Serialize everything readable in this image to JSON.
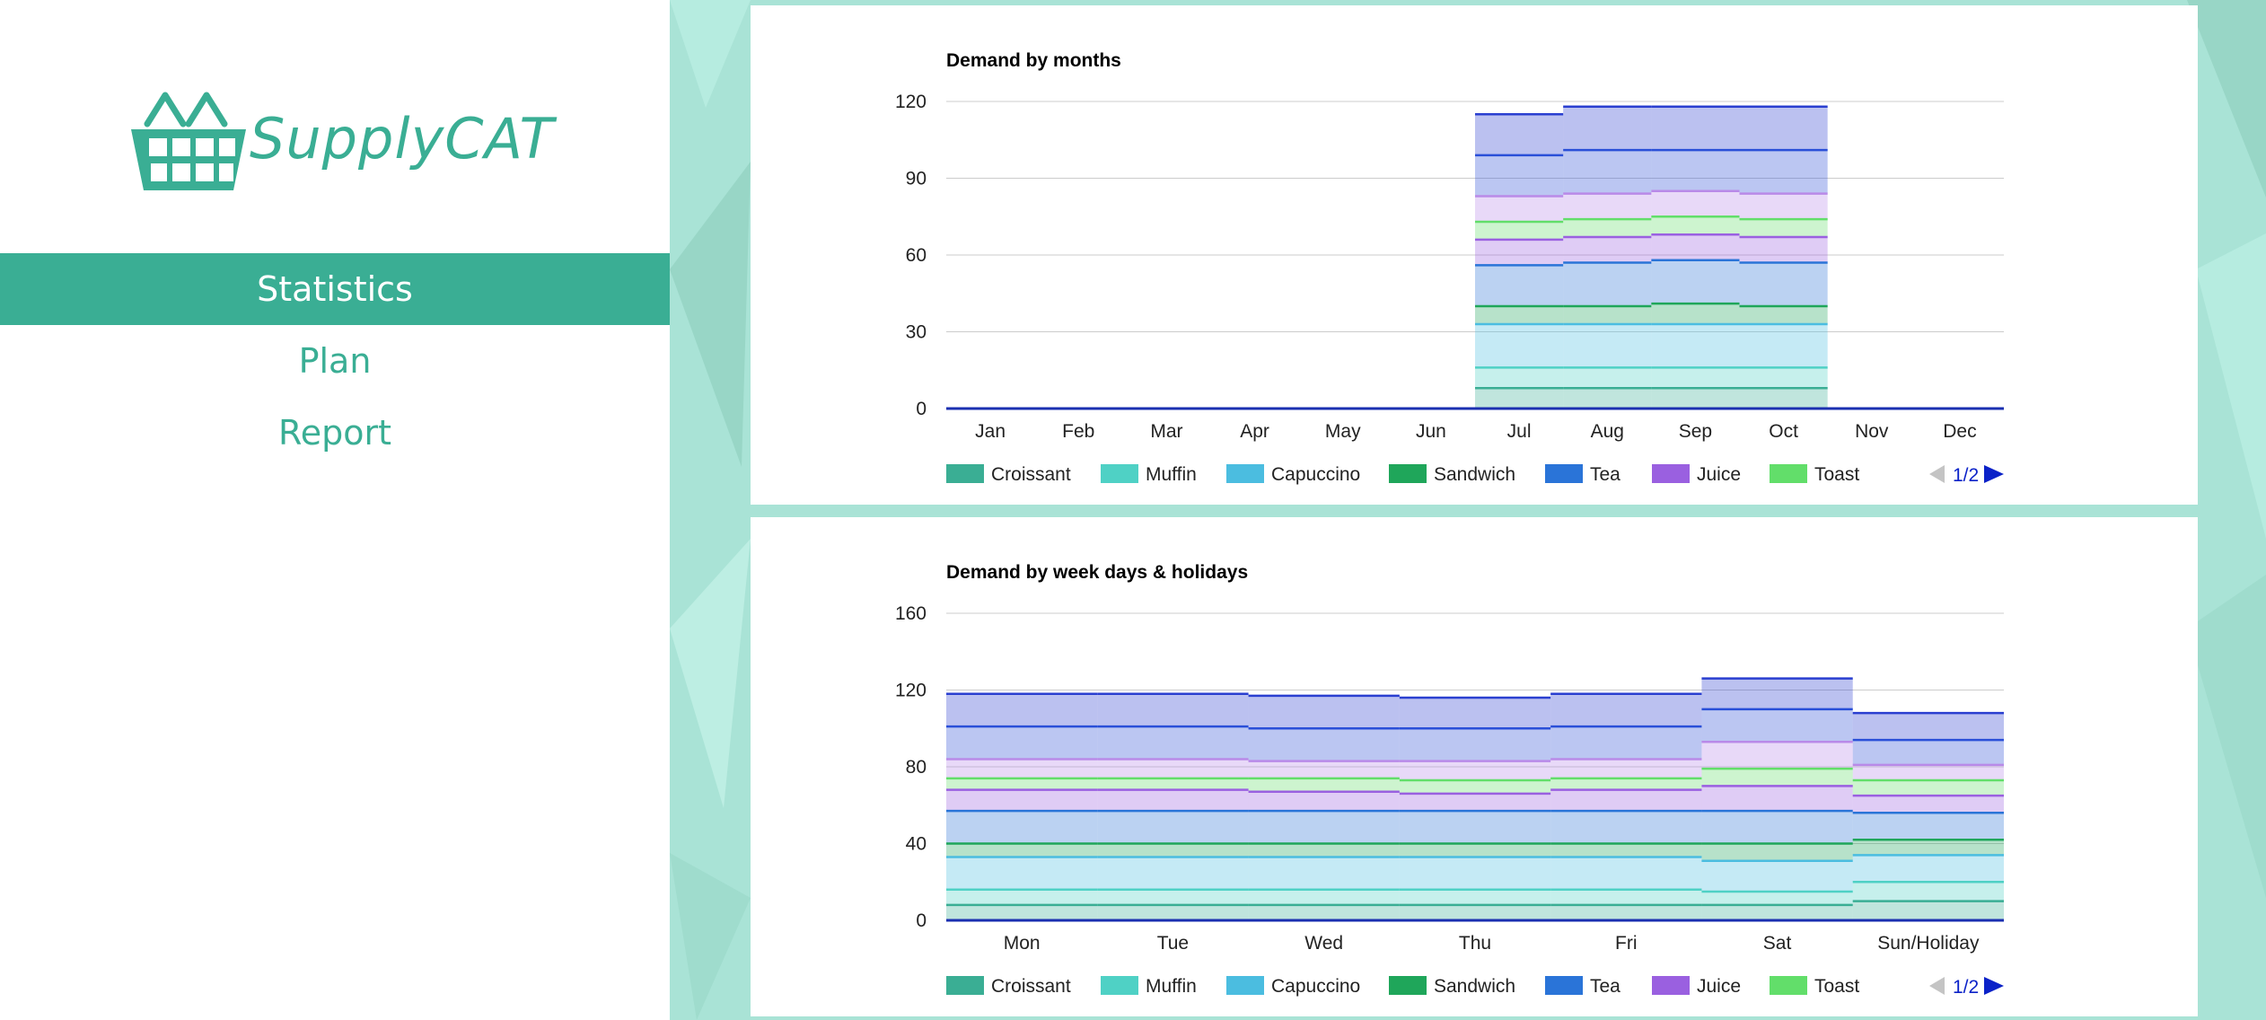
{
  "app": {
    "name": "SupplyCAT",
    "logo_icon": "basket-icon",
    "accent": "#3aae94",
    "background": "#a9e3d6"
  },
  "nav": {
    "items": [
      {
        "label": "Statistics",
        "active": true
      },
      {
        "label": "Plan",
        "active": false
      },
      {
        "label": "Report",
        "active": false
      }
    ]
  },
  "legend": {
    "colors": {
      "Croissant": "#3aae94",
      "Muffin": "#4fd1c5",
      "Capuccino": "#4bbde0",
      "Sandwich": "#1fa65a",
      "Tea": "#2a74d8",
      "Juice": "#9a60e0",
      "Toast": "#62de6a"
    },
    "pager": "1/2"
  },
  "chart_data": [
    {
      "type": "area",
      "title": "Demand by months",
      "xlabel": "",
      "ylabel": "",
      "ylim": [
        0,
        120
      ],
      "yticks": [
        0,
        30,
        60,
        90,
        120
      ],
      "categories": [
        "Jan",
        "Feb",
        "Mar",
        "Apr",
        "May",
        "Jun",
        "Jul",
        "Aug",
        "Sep",
        "Oct",
        "Nov",
        "Dec"
      ],
      "stacked": true,
      "grid": true,
      "legend_position": "bottom",
      "series_note": "stacked boundaries (cumulative) per category",
      "stack_levels": [
        [
          0,
          0,
          0,
          0,
          0,
          0,
          8,
          8,
          8,
          8,
          0,
          0
        ],
        [
          0,
          0,
          0,
          0,
          0,
          0,
          16,
          16,
          16,
          16,
          0,
          0
        ],
        [
          0,
          0,
          0,
          0,
          0,
          0,
          33,
          33,
          33,
          33,
          0,
          0
        ],
        [
          0,
          0,
          0,
          0,
          0,
          0,
          40,
          40,
          41,
          40,
          0,
          0
        ],
        [
          0,
          0,
          0,
          0,
          0,
          0,
          56,
          57,
          58,
          57,
          0,
          0
        ],
        [
          0,
          0,
          0,
          0,
          0,
          0,
          66,
          67,
          68,
          67,
          0,
          0
        ],
        [
          0,
          0,
          0,
          0,
          0,
          0,
          73,
          74,
          75,
          74,
          0,
          0
        ],
        [
          0,
          0,
          0,
          0,
          0,
          0,
          83,
          84,
          85,
          84,
          0,
          0
        ],
        [
          0,
          0,
          0,
          0,
          0,
          0,
          99,
          101,
          101,
          101,
          0,
          0
        ],
        [
          0,
          0,
          0,
          0,
          0,
          0,
          115,
          118,
          118,
          118,
          0,
          0
        ]
      ],
      "band_colors": [
        "#3aae94",
        "#4fd1c5",
        "#4bbde0",
        "#1fa65a",
        "#2a74d8",
        "#9a60e0",
        "#62de6a",
        "#b98ae8",
        "#2a4fd8",
        "#2a3fd0"
      ],
      "legend_entries": [
        "Croissant",
        "Muffin",
        "Capuccino",
        "Sandwich",
        "Tea",
        "Juice",
        "Toast"
      ]
    },
    {
      "type": "area",
      "title": "Demand by week days & holidays",
      "xlabel": "",
      "ylabel": "",
      "ylim": [
        0,
        160
      ],
      "yticks": [
        0,
        40,
        80,
        120,
        160
      ],
      "categories": [
        "Mon",
        "Tue",
        "Wed",
        "Thu",
        "Fri",
        "Sat",
        "Sun/Holiday"
      ],
      "stacked": true,
      "grid": true,
      "legend_position": "bottom",
      "series_note": "stacked boundaries (cumulative) per category",
      "stack_levels": [
        [
          8,
          8,
          8,
          8,
          8,
          8,
          10
        ],
        [
          16,
          16,
          16,
          16,
          16,
          15,
          20
        ],
        [
          33,
          33,
          33,
          33,
          33,
          31,
          34
        ],
        [
          40,
          40,
          40,
          40,
          40,
          40,
          42
        ],
        [
          57,
          57,
          57,
          57,
          57,
          57,
          56
        ],
        [
          68,
          68,
          67,
          66,
          68,
          70,
          65
        ],
        [
          74,
          74,
          74,
          73,
          74,
          79,
          73
        ],
        [
          84,
          84,
          83,
          83,
          84,
          93,
          81
        ],
        [
          101,
          101,
          100,
          100,
          101,
          110,
          94
        ],
        [
          118,
          118,
          117,
          116,
          118,
          126,
          108
        ]
      ],
      "band_colors": [
        "#3aae94",
        "#4fd1c5",
        "#4bbde0",
        "#1fa65a",
        "#2a74d8",
        "#9a60e0",
        "#62de6a",
        "#b98ae8",
        "#2a4fd8",
        "#2a3fd0"
      ],
      "legend_entries": [
        "Croissant",
        "Muffin",
        "Capuccino",
        "Sandwich",
        "Tea",
        "Juice",
        "Toast"
      ]
    }
  ]
}
